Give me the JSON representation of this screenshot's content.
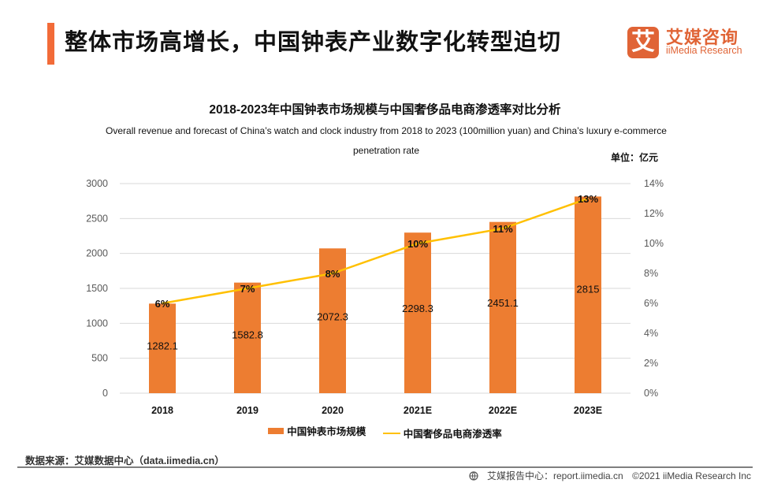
{
  "header": {
    "title": "整体市场高增长，中国钟表产业数字化转型迫切",
    "accent_color": "#f26b38"
  },
  "logo": {
    "mark": "艾",
    "name_cn": "艾媒咨询",
    "name_en": "iiMedia Research",
    "color": "#e06436"
  },
  "chart_data": {
    "type": "bar",
    "title": "2018-2023年中国钟表市场规模与中国奢侈品电商渗透率对比分析",
    "subtitle": "Overall revenue and forecast of China’s watch and clock industry from 2018 to 2023 (100million yuan) and China’s luxury e-commerce penetration rate",
    "unit_label": "单位：亿元",
    "categories": [
      "2018",
      "2019",
      "2020",
      "2021E",
      "2022E",
      "2023E"
    ],
    "series": [
      {
        "name": "中国钟表市场规模",
        "type": "bar",
        "axis": "left",
        "color": "#ed7d31",
        "values": [
          1282.1,
          1582.8,
          2072.3,
          2298.3,
          2451.1,
          2815
        ],
        "labels": [
          "1282.1",
          "1582.8",
          "2072.3",
          "2298.3",
          "2451.1",
          "2815"
        ]
      },
      {
        "name": "中国奢侈品电商渗透率",
        "type": "line",
        "axis": "right",
        "color": "#ffc000",
        "values": [
          6,
          7,
          8,
          10,
          11,
          13
        ],
        "labels": [
          "6%",
          "7%",
          "8%",
          "10%",
          "11%",
          "13%"
        ]
      }
    ],
    "y_left": {
      "range": [
        0,
        3000
      ],
      "ticks": [
        "0",
        "500",
        "1000",
        "1500",
        "2000",
        "2500",
        "3000"
      ],
      "tick_values": [
        0,
        500,
        1000,
        1500,
        2000,
        2500,
        3000
      ]
    },
    "y_right": {
      "range": [
        0,
        14
      ],
      "ticks": [
        "0%",
        "2%",
        "4%",
        "6%",
        "8%",
        "10%",
        "12%",
        "14%"
      ],
      "tick_values": [
        0,
        2,
        4,
        6,
        8,
        10,
        12,
        14
      ]
    },
    "grid": true,
    "legend_position": "bottom"
  },
  "footer": {
    "source": "数据来源：艾媒数据中心（data.iimedia.cn）",
    "report_center": "艾媒报告中心：report.iimedia.cn",
    "copyright": "©2021  iiMedia Research  Inc",
    "globe_icon": "globe-icon"
  }
}
